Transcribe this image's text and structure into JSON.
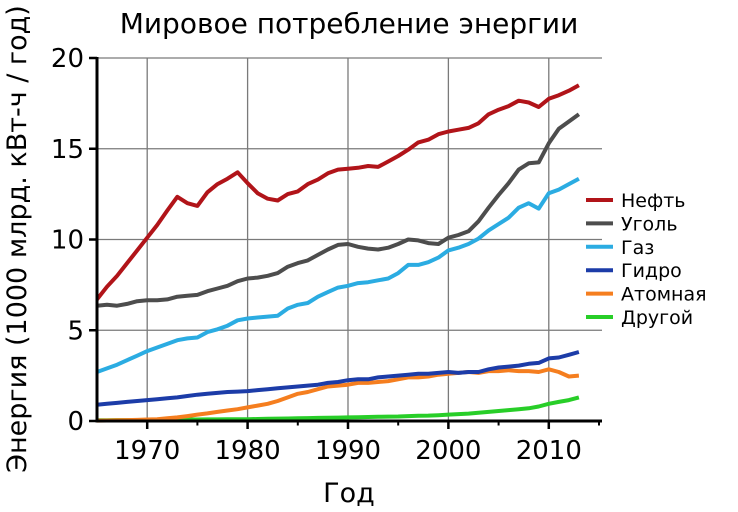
{
  "chart_data": {
    "type": "line",
    "title": "Мировое потребление энергии",
    "xlabel": "Год",
    "ylabel": "Энергия (1000 млрд. кВт-ч / год)",
    "xlim": [
      1965,
      2015.3
    ],
    "ylim": [
      0,
      20
    ],
    "xticks": [
      1970,
      1980,
      1990,
      2000,
      2010
    ],
    "minor_xticks": [
      1975,
      1985,
      1995,
      2005,
      2015
    ],
    "yticks": [
      0,
      5,
      10,
      15,
      20
    ],
    "grid": true,
    "legend_position": "right",
    "x": [
      1965,
      1966,
      1967,
      1968,
      1969,
      1970,
      1971,
      1972,
      1973,
      1974,
      1975,
      1976,
      1977,
      1978,
      1979,
      1980,
      1981,
      1982,
      1983,
      1984,
      1985,
      1986,
      1987,
      1988,
      1989,
      1990,
      1991,
      1992,
      1993,
      1994,
      1995,
      1996,
      1997,
      1998,
      1999,
      2000,
      2001,
      2002,
      2003,
      2004,
      2005,
      2006,
      2007,
      2008,
      2009,
      2010,
      2011,
      2012,
      2013
    ],
    "series": [
      {
        "key": "oil",
        "name": "Нефть",
        "color": "#b11419",
        "values": [
          6.7,
          7.4,
          8.0,
          8.7,
          9.4,
          10.1,
          10.8,
          11.6,
          12.35,
          12.0,
          11.85,
          12.6,
          13.05,
          13.35,
          13.7,
          13.1,
          12.55,
          12.25,
          12.15,
          12.5,
          12.65,
          13.05,
          13.3,
          13.65,
          13.85,
          13.9,
          13.95,
          14.05,
          14.0,
          14.3,
          14.6,
          14.95,
          15.35,
          15.5,
          15.8,
          15.95,
          16.05,
          16.15,
          16.4,
          16.9,
          17.15,
          17.35,
          17.65,
          17.55,
          17.3,
          17.75,
          17.95,
          18.2,
          18.5
        ]
      },
      {
        "key": "coal",
        "name": "Уголь",
        "color": "#4d4d4d",
        "values": [
          6.35,
          6.4,
          6.35,
          6.45,
          6.6,
          6.65,
          6.65,
          6.7,
          6.85,
          6.9,
          6.95,
          7.15,
          7.3,
          7.45,
          7.7,
          7.85,
          7.9,
          8.0,
          8.15,
          8.5,
          8.7,
          8.85,
          9.15,
          9.45,
          9.7,
          9.75,
          9.6,
          9.5,
          9.45,
          9.55,
          9.75,
          10.0,
          9.95,
          9.8,
          9.75,
          10.1,
          10.25,
          10.45,
          11.0,
          11.75,
          12.45,
          13.1,
          13.85,
          14.2,
          14.25,
          15.3,
          16.1,
          16.5,
          16.9
        ]
      },
      {
        "key": "gas",
        "name": "Газ",
        "color": "#2bace2",
        "values": [
          2.7,
          2.9,
          3.1,
          3.35,
          3.6,
          3.85,
          4.05,
          4.25,
          4.45,
          4.55,
          4.6,
          4.9,
          5.05,
          5.25,
          5.55,
          5.65,
          5.7,
          5.75,
          5.8,
          6.2,
          6.4,
          6.5,
          6.85,
          7.1,
          7.35,
          7.45,
          7.6,
          7.65,
          7.75,
          7.85,
          8.15,
          8.6,
          8.6,
          8.75,
          9.0,
          9.4,
          9.55,
          9.75,
          10.05,
          10.5,
          10.85,
          11.2,
          11.75,
          12.0,
          11.7,
          12.55,
          12.75,
          13.05,
          13.35
        ]
      },
      {
        "key": "hydro",
        "name": "Гидро",
        "color": "#1c3ca8",
        "values": [
          0.9,
          0.95,
          1.0,
          1.05,
          1.1,
          1.15,
          1.2,
          1.25,
          1.3,
          1.38,
          1.45,
          1.5,
          1.55,
          1.6,
          1.62,
          1.65,
          1.7,
          1.75,
          1.8,
          1.85,
          1.9,
          1.95,
          2.0,
          2.1,
          2.15,
          2.25,
          2.3,
          2.3,
          2.4,
          2.45,
          2.5,
          2.55,
          2.6,
          2.6,
          2.65,
          2.7,
          2.65,
          2.7,
          2.7,
          2.85,
          2.95,
          3.0,
          3.05,
          3.15,
          3.2,
          3.45,
          3.5,
          3.65,
          3.8
        ]
      },
      {
        "key": "nuclear",
        "name": "Атомная",
        "color": "#f57e1f",
        "values": [
          0.02,
          0.03,
          0.04,
          0.05,
          0.06,
          0.08,
          0.1,
          0.15,
          0.2,
          0.27,
          0.35,
          0.42,
          0.5,
          0.58,
          0.65,
          0.75,
          0.85,
          0.95,
          1.1,
          1.3,
          1.5,
          1.6,
          1.75,
          1.9,
          1.95,
          2.0,
          2.1,
          2.1,
          2.15,
          2.2,
          2.3,
          2.4,
          2.4,
          2.45,
          2.55,
          2.6,
          2.65,
          2.7,
          2.65,
          2.75,
          2.75,
          2.8,
          2.75,
          2.75,
          2.7,
          2.85,
          2.7,
          2.45,
          2.5
        ]
      },
      {
        "key": "other",
        "name": "Другой",
        "color": "#28ce28",
        "values": [
          0.04,
          0.04,
          0.05,
          0.05,
          0.05,
          0.06,
          0.06,
          0.07,
          0.07,
          0.08,
          0.08,
          0.09,
          0.09,
          0.1,
          0.1,
          0.1,
          0.11,
          0.12,
          0.13,
          0.14,
          0.15,
          0.16,
          0.17,
          0.18,
          0.19,
          0.2,
          0.21,
          0.22,
          0.23,
          0.24,
          0.25,
          0.27,
          0.29,
          0.3,
          0.32,
          0.35,
          0.38,
          0.41,
          0.45,
          0.5,
          0.55,
          0.6,
          0.65,
          0.7,
          0.8,
          0.95,
          1.05,
          1.15,
          1.3
        ]
      }
    ]
  }
}
